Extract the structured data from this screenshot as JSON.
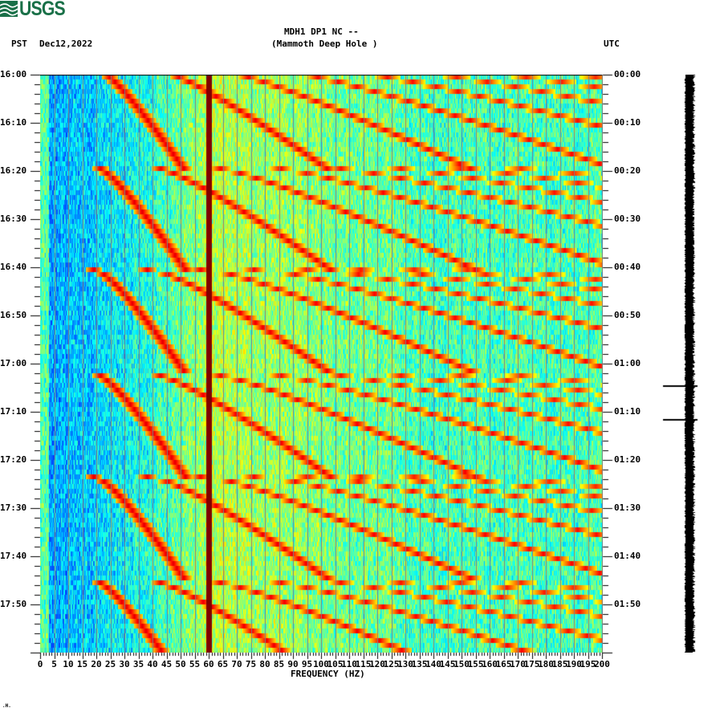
{
  "header": {
    "logo_text": "USGS",
    "timezone_left": "PST",
    "date": "Dec12,2022",
    "station_line": "MDH1 DP1 NC --",
    "station_name": "(Mammoth Deep Hole )",
    "timezone_right": "UTC",
    "footer_mark": ".H."
  },
  "colors": {
    "logo_green": "#1a7048",
    "line_60hz": "#800000",
    "gridline": "#808080"
  },
  "chart_data": {
    "type": "heatmap",
    "title": "MDH1 DP1 NC -- (Mammoth Deep Hole )",
    "subtitle": "Dec12,2022",
    "xlabel": "FREQUENCY (HZ)",
    "ylabel_left": "PST",
    "ylabel_right": "UTC",
    "xlim": [
      0,
      200
    ],
    "x_ticks": [
      0,
      5,
      10,
      15,
      20,
      25,
      30,
      35,
      40,
      45,
      50,
      55,
      60,
      65,
      70,
      75,
      80,
      85,
      90,
      95,
      100,
      105,
      110,
      115,
      120,
      125,
      130,
      135,
      140,
      145,
      150,
      155,
      160,
      165,
      170,
      175,
      180,
      185,
      190,
      195,
      200
    ],
    "y_ticks_left": [
      "16:00",
      "16:10",
      "16:20",
      "16:30",
      "16:40",
      "16:50",
      "17:00",
      "17:10",
      "17:20",
      "17:30",
      "17:40",
      "17:50"
    ],
    "y_ticks_right": [
      "00:00",
      "00:10",
      "00:20",
      "00:30",
      "00:40",
      "00:50",
      "01:00",
      "01:10",
      "01:20",
      "01:30",
      "01:40",
      "01:50"
    ],
    "time_range_minutes": 120,
    "grid": "vertical lines every 5 Hz",
    "colormap": "jet",
    "features": {
      "persistent_lines_hz": [
        60,
        180
      ],
      "line_180_end_minute": 110,
      "broadband_events_minutes": [
        64.5,
        71.5
      ],
      "sweep_cycle_minutes": 21.5,
      "sweep_starts_minutes": [
        -2,
        18.5,
        40,
        61.5,
        83,
        104.5
      ],
      "sweep_harmonics_base_hz": 20,
      "sweep_harmonic_count": 8,
      "noise_low_freq_below_hz": 40,
      "noise_high_freq_above_hz": 140,
      "horizontal_band_minute": 34.5
    }
  },
  "trace": {
    "label": "seismogram-trace",
    "spikes_minutes": [
      64.5,
      71.5
    ]
  }
}
